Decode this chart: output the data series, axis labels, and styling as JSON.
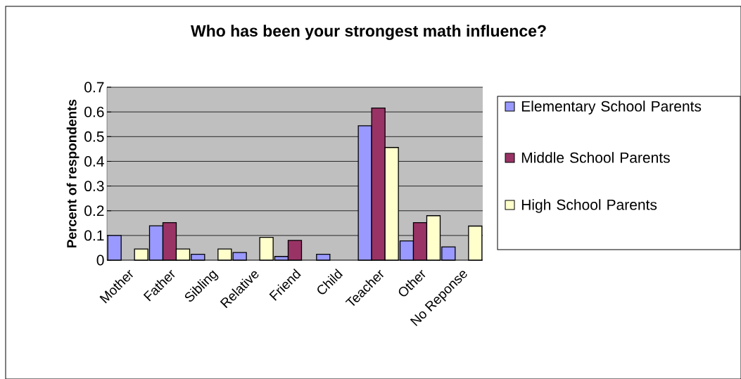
{
  "chart_data": {
    "type": "bar",
    "title": "Who has been your strongest math influence?",
    "ylabel": "Percent of respondents",
    "categories": [
      "Mother",
      "Father",
      "Sibling",
      "Relative",
      "Friend",
      "Child",
      "Teacher",
      "Other",
      "No Reponse"
    ],
    "series": [
      {
        "name": "Elementary School Parents",
        "color": "#9999ff",
        "values": [
          0.1,
          0.139,
          0.024,
          0.031,
          0.015,
          0.024,
          0.544,
          0.078,
          0.054
        ]
      },
      {
        "name": "Middle School Parents",
        "color": "#993366",
        "values": [
          0,
          0.152,
          0,
          0,
          0.08,
          0,
          0.616,
          0.152,
          0
        ]
      },
      {
        "name": "High School Parents",
        "color": "#ffffcc",
        "values": [
          0.045,
          0.045,
          0.045,
          0.092,
          0,
          0,
          0.456,
          0.18,
          0.138
        ]
      }
    ],
    "ylim": [
      0,
      0.7
    ],
    "yticks": [
      0,
      0.1,
      0.2,
      0.3,
      0.4,
      0.5,
      0.6,
      0.7
    ],
    "grid": "y",
    "legend": "right"
  }
}
